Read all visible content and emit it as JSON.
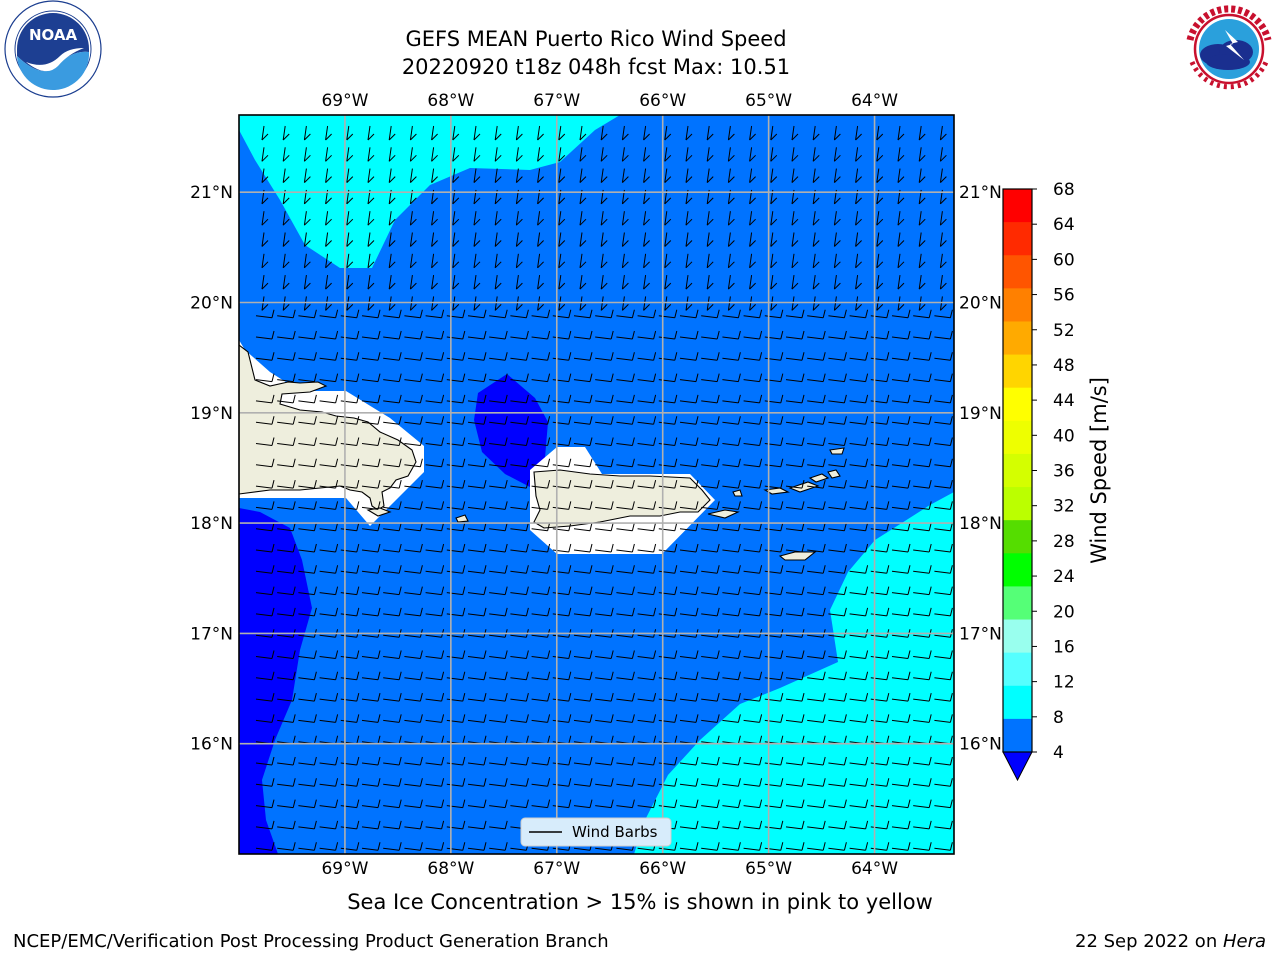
{
  "title": {
    "line1": "GEFS MEAN Puerto Rico Wind Speed",
    "line2": "20220920 t18z 048h fcst   Max: 10.51"
  },
  "logos": {
    "left": {
      "icon": "noaa-logo",
      "text": "NOAA",
      "ring_text": "NATIONAL OCEANIC AND ATMOSPHERIC ADMINISTRATION · U.S. DEPARTMENT OF COMMERCE"
    },
    "right": {
      "icon": "nws-logo",
      "ring_text": "NATIONAL WEATHER SERVICE"
    }
  },
  "map": {
    "lon_labels": [
      "69°W",
      "68°W",
      "67°W",
      "66°W",
      "65°W",
      "64°W"
    ],
    "lat_labels": [
      "21°N",
      "20°N",
      "19°N",
      "18°N",
      "17°N",
      "16°N"
    ],
    "lon_values": [
      -69,
      -68,
      -67,
      -66,
      -65,
      -64
    ],
    "lat_values": [
      21,
      20,
      19,
      18,
      17,
      16
    ],
    "lon_range": [
      -70.0,
      -63.25
    ],
    "lat_range": [
      15.0,
      21.7
    ],
    "legend_label": "Wind Barbs",
    "colors": {
      "band_4_8": "#0073ff",
      "band_below_4": "#0000ff",
      "band_8_12": "#00ffff",
      "land": "#eeeedd",
      "ice_mask": "#ffffff",
      "grid": "#b0b0b0"
    }
  },
  "colorbar": {
    "label": "Wind Speed [m/s]",
    "ticks": [
      "68",
      "64",
      "60",
      "56",
      "52",
      "48",
      "44",
      "40",
      "36",
      "32",
      "28",
      "24",
      "20",
      "16",
      "12",
      "8",
      "4"
    ],
    "colors_top_to_bottom": [
      "#ff0000",
      "#ff2a00",
      "#ff5500",
      "#ff8000",
      "#ffaa00",
      "#ffd500",
      "#ffff00",
      "#eeff00",
      "#d4ff00",
      "#bbff00",
      "#55dd00",
      "#00ff00",
      "#55ff77",
      "#99ffee",
      "#55ffff",
      "#00ffff",
      "#0073ff"
    ],
    "extend_below_color": "#0000ff"
  },
  "caption": "Sea Ice Concentration > 15% is shown in pink to yellow",
  "footer": {
    "left": "NCEP/EMC/Verification Post Processing Product Generation Branch",
    "right_date": "22 Sep 2022 on ",
    "right_host": "Hera"
  }
}
